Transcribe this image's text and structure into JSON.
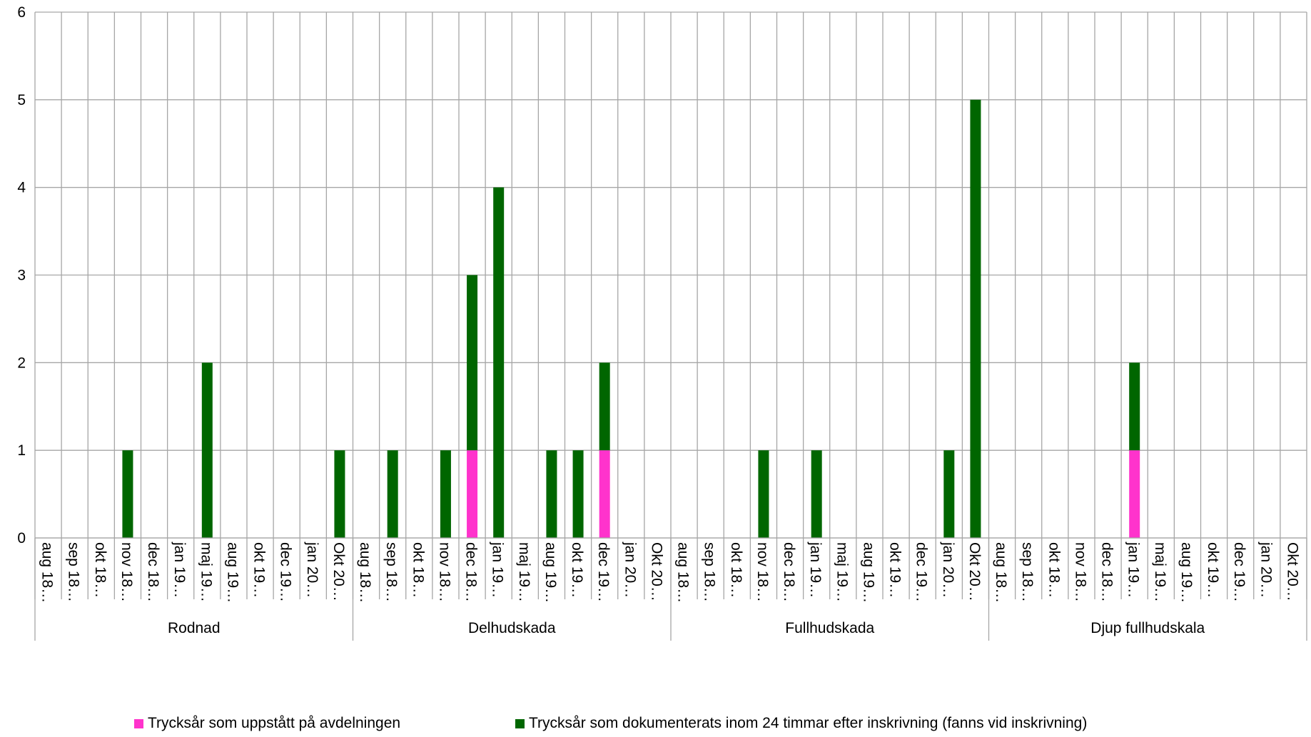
{
  "chart_data": {
    "type": "bar",
    "stacked": true,
    "title": "",
    "xlabel": "",
    "ylabel": "",
    "ylim": [
      0,
      6
    ],
    "yticks": [
      0,
      1,
      2,
      3,
      4,
      5,
      6
    ],
    "grid": true,
    "legend_position": "bottom",
    "groups": [
      {
        "name": "Rodnad",
        "categories": [
          "aug 18…",
          "sep 18…",
          "okt 18…",
          "nov 18…",
          "dec 18…",
          "jan 19…",
          "maj 19…",
          "aug 19…",
          "okt 19…",
          "dec 19…",
          "jan 20…",
          "Okt 20…"
        ]
      },
      {
        "name": "Delhudskada",
        "categories": [
          "aug 18…",
          "sep 18…",
          "okt 18…",
          "nov 18…",
          "dec 18…",
          "jan 19…",
          "maj 19…",
          "aug 19…",
          "okt 19…",
          "dec 19…",
          "jan 20…",
          "Okt 20…"
        ]
      },
      {
        "name": "Fullhudskada",
        "categories": [
          "aug 18…",
          "sep 18…",
          "okt 18…",
          "nov 18…",
          "dec 18…",
          "jan 19…",
          "maj 19…",
          "aug 19…",
          "okt 19…",
          "dec 19…",
          "jan 20…",
          "Okt 20…"
        ]
      },
      {
        "name": "Djup fullhudskala",
        "categories": [
          "aug 18…",
          "sep 18…",
          "okt 18…",
          "nov 18…",
          "dec 18…",
          "jan 19…",
          "maj 19…",
          "aug 19…",
          "okt 19…",
          "dec 19…",
          "jan 20…",
          "Okt 20…"
        ]
      }
    ],
    "series": [
      {
        "name": "Trycksår som uppstått på avdelningen",
        "color": "#ff33cc",
        "values": [
          0,
          0,
          0,
          0,
          0,
          0,
          0,
          0,
          0,
          0,
          0,
          0,
          0,
          0,
          0,
          0,
          1,
          0,
          0,
          0,
          0,
          1,
          0,
          0,
          0,
          0,
          0,
          0,
          0,
          0,
          0,
          0,
          0,
          0,
          0,
          0,
          0,
          0,
          0,
          0,
          0,
          1,
          0,
          0,
          0,
          0,
          0,
          0
        ]
      },
      {
        "name": "Trycksår som dokumenterats inom 24 timmar efter inskrivning (fanns vid inskrivning)",
        "color": "#006600",
        "values": [
          0,
          0,
          0,
          1,
          0,
          0,
          2,
          0,
          0,
          0,
          0,
          1,
          0,
          1,
          0,
          1,
          2,
          4,
          0,
          1,
          1,
          1,
          0,
          0,
          0,
          0,
          0,
          1,
          0,
          1,
          0,
          0,
          0,
          0,
          1,
          5,
          0,
          0,
          0,
          0,
          0,
          1,
          0,
          0,
          0,
          0,
          0,
          0
        ]
      }
    ]
  },
  "colors": {
    "grid": "#a6a6a6",
    "axis": "#a6a6a6"
  }
}
